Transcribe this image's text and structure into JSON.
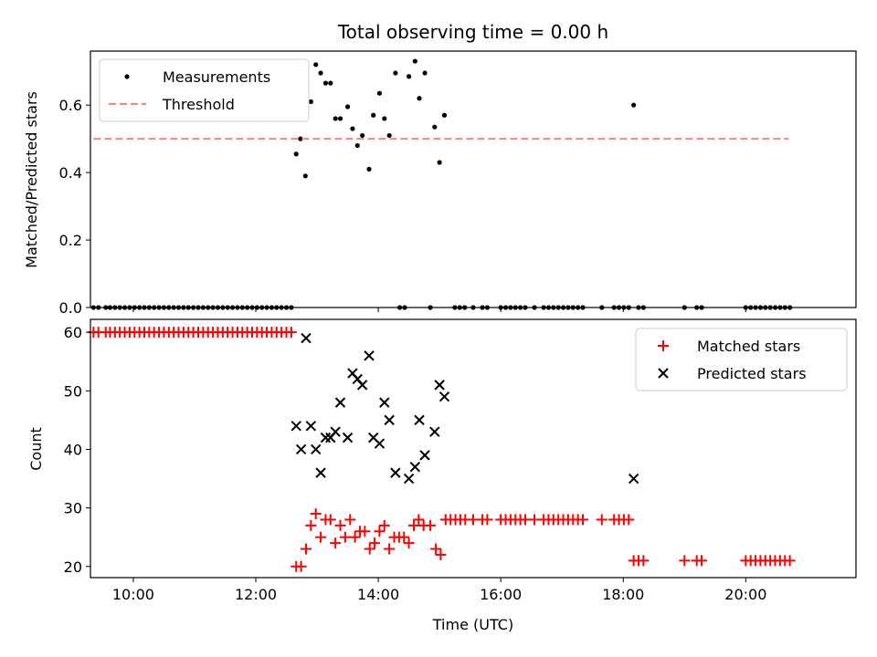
{
  "chart_data": [
    {
      "type": "scatter",
      "title": "Total observing time = 0.00 h",
      "xlabel": "",
      "ylabel": "Matched/Predicted stars",
      "xlim": [
        9.3,
        21.8
      ],
      "ylim": [
        0.0,
        0.76
      ],
      "yticks": [
        0.0,
        0.2,
        0.4,
        0.6
      ],
      "ytick_labels": [
        "0.0",
        "0.2",
        "0.4",
        "0.6"
      ],
      "xticks": [
        10,
        12,
        14,
        16,
        18,
        20
      ],
      "show_xtick_labels": false,
      "grid": false,
      "legend_placement": "upper-left",
      "series": [
        {
          "name": "Measurements",
          "marker": "dot",
          "color": "#000000",
          "points": [
            [
              9.35,
              0
            ],
            [
              9.43,
              0
            ],
            [
              9.55,
              0
            ],
            [
              9.62,
              0
            ],
            [
              9.7,
              0
            ],
            [
              9.78,
              0
            ],
            [
              9.86,
              0
            ],
            [
              9.94,
              0
            ],
            [
              10.02,
              0
            ],
            [
              10.1,
              0
            ],
            [
              10.18,
              0
            ],
            [
              10.26,
              0
            ],
            [
              10.34,
              0
            ],
            [
              10.42,
              0
            ],
            [
              10.5,
              0
            ],
            [
              10.58,
              0
            ],
            [
              10.66,
              0
            ],
            [
              10.74,
              0
            ],
            [
              10.82,
              0
            ],
            [
              10.9,
              0
            ],
            [
              10.98,
              0
            ],
            [
              11.06,
              0
            ],
            [
              11.14,
              0
            ],
            [
              11.22,
              0
            ],
            [
              11.3,
              0
            ],
            [
              11.38,
              0
            ],
            [
              11.46,
              0
            ],
            [
              11.54,
              0
            ],
            [
              11.62,
              0
            ],
            [
              11.7,
              0
            ],
            [
              11.78,
              0
            ],
            [
              11.86,
              0
            ],
            [
              11.94,
              0
            ],
            [
              12.02,
              0
            ],
            [
              12.1,
              0
            ],
            [
              12.18,
              0
            ],
            [
              12.26,
              0
            ],
            [
              12.34,
              0
            ],
            [
              12.42,
              0
            ],
            [
              12.5,
              0
            ],
            [
              12.58,
              0
            ],
            [
              14.35,
              0
            ],
            [
              14.43,
              0
            ],
            [
              14.85,
              0
            ],
            [
              15.25,
              0
            ],
            [
              15.33,
              0
            ],
            [
              15.41,
              0
            ],
            [
              15.55,
              0
            ],
            [
              15.7,
              0
            ],
            [
              15.78,
              0
            ],
            [
              16.0,
              0
            ],
            [
              16.08,
              0
            ],
            [
              16.16,
              0
            ],
            [
              16.24,
              0
            ],
            [
              16.32,
              0
            ],
            [
              16.4,
              0
            ],
            [
              16.55,
              0
            ],
            [
              16.7,
              0
            ],
            [
              16.78,
              0
            ],
            [
              16.86,
              0
            ],
            [
              16.94,
              0
            ],
            [
              17.02,
              0
            ],
            [
              17.1,
              0
            ],
            [
              17.18,
              0
            ],
            [
              17.26,
              0
            ],
            [
              17.34,
              0
            ],
            [
              17.65,
              0
            ],
            [
              17.85,
              0
            ],
            [
              17.93,
              0
            ],
            [
              18.01,
              0
            ],
            [
              18.09,
              0
            ],
            [
              18.25,
              0
            ],
            [
              18.33,
              0
            ],
            [
              19.0,
              0
            ],
            [
              19.2,
              0
            ],
            [
              19.28,
              0
            ],
            [
              20.0,
              0
            ],
            [
              20.08,
              0
            ],
            [
              20.16,
              0
            ],
            [
              20.24,
              0
            ],
            [
              20.32,
              0
            ],
            [
              20.4,
              0
            ],
            [
              20.48,
              0
            ],
            [
              20.56,
              0
            ],
            [
              20.64,
              0
            ],
            [
              20.72,
              0
            ],
            [
              12.66,
              0.455
            ],
            [
              12.73,
              0.5
            ],
            [
              12.81,
              0.39
            ],
            [
              12.9,
              0.61
            ],
            [
              12.98,
              0.72
            ],
            [
              13.06,
              0.695
            ],
            [
              13.14,
              0.665
            ],
            [
              13.22,
              0.665
            ],
            [
              13.3,
              0.56
            ],
            [
              13.38,
              0.56
            ],
            [
              13.5,
              0.595
            ],
            [
              13.58,
              0.53
            ],
            [
              13.66,
              0.48
            ],
            [
              13.74,
              0.51
            ],
            [
              13.85,
              0.41
            ],
            [
              13.92,
              0.57
            ],
            [
              14.02,
              0.635
            ],
            [
              14.1,
              0.56
            ],
            [
              14.18,
              0.51
            ],
            [
              14.28,
              0.695
            ],
            [
              14.5,
              0.685
            ],
            [
              14.6,
              0.73
            ],
            [
              14.67,
              0.62
            ],
            [
              14.76,
              0.695
            ],
            [
              14.92,
              0.535
            ],
            [
              15.0,
              0.43
            ],
            [
              15.08,
              0.57
            ],
            [
              18.17,
              0.6
            ]
          ]
        },
        {
          "name": "Threshold",
          "line_style": "dashed",
          "color": "#ff7f7f",
          "x": [
            9.35,
            20.7
          ],
          "y": [
            0.5,
            0.5
          ]
        }
      ]
    },
    {
      "type": "scatter",
      "title": "",
      "xlabel": "Time (UTC)",
      "ylabel": "Count",
      "xlim": [
        9.3,
        21.8
      ],
      "ylim": [
        18.1,
        62.2
      ],
      "yticks": [
        20,
        30,
        40,
        50,
        60
      ],
      "ytick_labels": [
        "20",
        "30",
        "40",
        "50",
        "60"
      ],
      "xticks": [
        10,
        12,
        14,
        16,
        18,
        20
      ],
      "xtick_labels": [
        "10:00",
        "12:00",
        "14:00",
        "16:00",
        "18:00",
        "20:00"
      ],
      "grid": false,
      "legend_placement": "upper-right",
      "series": [
        {
          "name": "Matched stars",
          "marker": "plus",
          "color": "#ff0000",
          "points": [
            [
              9.35,
              60
            ],
            [
              9.43,
              60
            ],
            [
              9.55,
              60
            ],
            [
              9.62,
              60
            ],
            [
              9.7,
              60
            ],
            [
              9.78,
              60
            ],
            [
              9.86,
              60
            ],
            [
              9.94,
              60
            ],
            [
              10.02,
              60
            ],
            [
              10.1,
              60
            ],
            [
              10.18,
              60
            ],
            [
              10.26,
              60
            ],
            [
              10.34,
              60
            ],
            [
              10.42,
              60
            ],
            [
              10.5,
              60
            ],
            [
              10.58,
              60
            ],
            [
              10.66,
              60
            ],
            [
              10.74,
              60
            ],
            [
              10.82,
              60
            ],
            [
              10.9,
              60
            ],
            [
              10.98,
              60
            ],
            [
              11.06,
              60
            ],
            [
              11.14,
              60
            ],
            [
              11.22,
              60
            ],
            [
              11.3,
              60
            ],
            [
              11.38,
              60
            ],
            [
              11.46,
              60
            ],
            [
              11.54,
              60
            ],
            [
              11.62,
              60
            ],
            [
              11.7,
              60
            ],
            [
              11.78,
              60
            ],
            [
              11.86,
              60
            ],
            [
              11.94,
              60
            ],
            [
              12.02,
              60
            ],
            [
              12.1,
              60
            ],
            [
              12.18,
              60
            ],
            [
              12.26,
              60
            ],
            [
              12.34,
              60
            ],
            [
              12.42,
              60
            ],
            [
              12.5,
              60
            ],
            [
              12.58,
              60
            ],
            [
              12.66,
              20
            ],
            [
              12.74,
              20
            ],
            [
              12.82,
              23
            ],
            [
              12.9,
              27
            ],
            [
              12.98,
              29
            ],
            [
              13.06,
              25
            ],
            [
              13.14,
              28
            ],
            [
              13.22,
              28
            ],
            [
              13.3,
              24
            ],
            [
              13.38,
              27
            ],
            [
              13.46,
              25
            ],
            [
              13.54,
              28
            ],
            [
              13.62,
              25
            ],
            [
              13.7,
              26
            ],
            [
              13.78,
              26
            ],
            [
              13.86,
              23
            ],
            [
              13.94,
              24
            ],
            [
              14.02,
              26
            ],
            [
              14.1,
              27
            ],
            [
              14.18,
              23
            ],
            [
              14.26,
              25
            ],
            [
              14.34,
              25
            ],
            [
              14.42,
              25
            ],
            [
              14.5,
              24
            ],
            [
              14.58,
              27
            ],
            [
              14.66,
              28
            ],
            [
              14.74,
              27
            ],
            [
              14.85,
              27
            ],
            [
              14.94,
              23
            ],
            [
              15.02,
              22
            ],
            [
              15.1,
              28
            ],
            [
              15.18,
              28
            ],
            [
              15.26,
              28
            ],
            [
              15.34,
              28
            ],
            [
              15.42,
              28
            ],
            [
              15.55,
              28
            ],
            [
              15.7,
              28
            ],
            [
              15.78,
              28
            ],
            [
              16.0,
              28
            ],
            [
              16.08,
              28
            ],
            [
              16.16,
              28
            ],
            [
              16.24,
              28
            ],
            [
              16.32,
              28
            ],
            [
              16.4,
              28
            ],
            [
              16.55,
              28
            ],
            [
              16.7,
              28
            ],
            [
              16.78,
              28
            ],
            [
              16.86,
              28
            ],
            [
              16.94,
              28
            ],
            [
              17.02,
              28
            ],
            [
              17.1,
              28
            ],
            [
              17.18,
              28
            ],
            [
              17.26,
              28
            ],
            [
              17.34,
              28
            ],
            [
              17.65,
              28
            ],
            [
              17.85,
              28
            ],
            [
              17.93,
              28
            ],
            [
              18.01,
              28
            ],
            [
              18.09,
              28
            ],
            [
              18.17,
              21
            ],
            [
              18.25,
              21
            ],
            [
              18.33,
              21
            ],
            [
              19.0,
              21
            ],
            [
              19.2,
              21
            ],
            [
              19.28,
              21
            ],
            [
              20.0,
              21
            ],
            [
              20.08,
              21
            ],
            [
              20.16,
              21
            ],
            [
              20.24,
              21
            ],
            [
              20.32,
              21
            ],
            [
              20.4,
              21
            ],
            [
              20.48,
              21
            ],
            [
              20.56,
              21
            ],
            [
              20.64,
              21
            ],
            [
              20.72,
              21
            ]
          ]
        },
        {
          "name": "Predicted stars",
          "marker": "x",
          "color": "#000000",
          "points": [
            [
              12.66,
              44
            ],
            [
              12.74,
              40
            ],
            [
              12.82,
              59
            ],
            [
              12.9,
              44
            ],
            [
              12.98,
              40
            ],
            [
              13.06,
              36
            ],
            [
              13.14,
              42
            ],
            [
              13.22,
              42
            ],
            [
              13.3,
              43
            ],
            [
              13.38,
              48
            ],
            [
              13.5,
              42
            ],
            [
              13.58,
              53
            ],
            [
              13.66,
              52
            ],
            [
              13.74,
              51
            ],
            [
              13.85,
              56
            ],
            [
              13.92,
              42
            ],
            [
              14.02,
              41
            ],
            [
              14.1,
              48
            ],
            [
              14.18,
              45
            ],
            [
              14.28,
              36
            ],
            [
              14.5,
              35
            ],
            [
              14.6,
              37
            ],
            [
              14.67,
              45
            ],
            [
              14.76,
              39
            ],
            [
              14.92,
              43
            ],
            [
              15.0,
              51
            ],
            [
              15.08,
              49
            ],
            [
              18.17,
              35
            ]
          ]
        }
      ]
    }
  ]
}
